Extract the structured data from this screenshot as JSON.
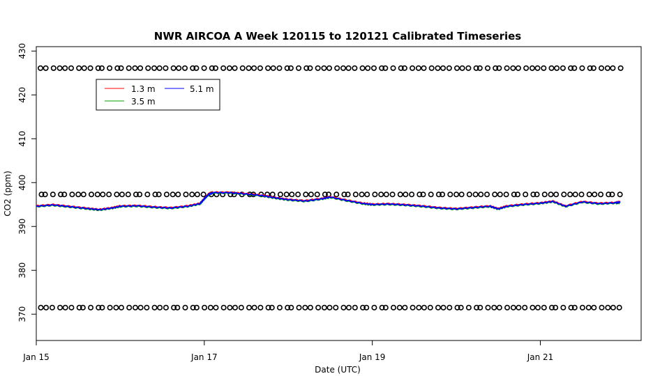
{
  "chart_data": {
    "type": "line",
    "title": "NWR AIRCOA A  Week 120115 to 120121  Calibrated Timeseries",
    "xlabel": "Date (UTC)",
    "ylabel": "CO2 (ppm)",
    "xlim": [
      15.0,
      22.2
    ],
    "ylim": [
      364,
      431
    ],
    "x_ticks": [
      15,
      17,
      19,
      21
    ],
    "x_tick_labels": [
      "Jan 15",
      "Jan 17",
      "Jan 19",
      "Jan 21"
    ],
    "y_ticks": [
      370,
      380,
      390,
      400,
      410,
      420,
      430
    ],
    "y_tick_labels": [
      "370",
      "380",
      "390",
      "400",
      "410",
      "420",
      "430"
    ],
    "grid": false,
    "legend": {
      "placement": "top-left",
      "entries": [
        {
          "label": "1.3 m",
          "color": "#ff0000"
        },
        {
          "label": "3.5 m",
          "color": "#00a000"
        },
        {
          "label": "5.1 m",
          "color": "#0000ff"
        }
      ]
    },
    "series": [
      {
        "name": "1.3 m",
        "color": "#ff0000",
        "x": [
          15.0,
          15.2,
          15.4,
          15.6,
          15.75,
          15.9,
          16.0,
          16.2,
          16.4,
          16.6,
          16.8,
          16.95,
          17.0,
          17.05,
          17.1,
          17.3,
          17.5,
          17.7,
          17.85,
          18.0,
          18.2,
          18.4,
          18.5,
          18.7,
          18.9,
          19.0,
          19.2,
          19.4,
          19.6,
          19.8,
          20.0,
          20.2,
          20.4,
          20.5,
          20.6,
          20.8,
          21.0,
          21.15,
          21.3,
          21.5,
          21.7,
          21.9,
          21.95
        ],
        "y": [
          394.7,
          395.0,
          394.6,
          394.2,
          393.9,
          394.3,
          394.7,
          394.8,
          394.5,
          394.3,
          394.7,
          395.3,
          396.4,
          397.4,
          397.8,
          397.8,
          397.5,
          397.1,
          396.6,
          396.2,
          395.9,
          396.4,
          396.8,
          396.0,
          395.3,
          395.1,
          395.2,
          395.0,
          394.7,
          394.3,
          394.1,
          394.4,
          394.7,
          394.1,
          394.7,
          395.1,
          395.4,
          395.8,
          394.7,
          395.7,
          395.3,
          395.5,
          395.6
        ]
      },
      {
        "name": "3.5 m",
        "color": "#00a000",
        "x": [
          15.0,
          15.2,
          15.4,
          15.6,
          15.75,
          15.9,
          16.0,
          16.2,
          16.4,
          16.6,
          16.8,
          16.95,
          17.0,
          17.05,
          17.1,
          17.3,
          17.5,
          17.7,
          17.85,
          18.0,
          18.2,
          18.4,
          18.5,
          18.7,
          18.9,
          19.0,
          19.2,
          19.4,
          19.6,
          19.8,
          20.0,
          20.2,
          20.4,
          20.5,
          20.6,
          20.8,
          21.0,
          21.15,
          21.3,
          21.5,
          21.7,
          21.9,
          21.95
        ],
        "y": [
          394.5,
          394.8,
          394.4,
          394.0,
          393.7,
          394.1,
          394.5,
          394.6,
          394.3,
          394.1,
          394.5,
          395.1,
          396.2,
          397.2,
          397.6,
          397.6,
          397.3,
          396.9,
          396.4,
          396.0,
          395.7,
          396.2,
          396.6,
          395.8,
          395.1,
          394.9,
          395.0,
          394.8,
          394.5,
          394.1,
          393.9,
          394.2,
          394.5,
          393.9,
          394.5,
          394.9,
          395.2,
          395.6,
          394.5,
          395.5,
          395.1,
          395.3,
          395.4
        ]
      },
      {
        "name": "5.1 m",
        "color": "#0000ff",
        "x": [
          15.0,
          15.2,
          15.4,
          15.6,
          15.75,
          15.9,
          16.0,
          16.2,
          16.4,
          16.6,
          16.8,
          16.95,
          17.0,
          17.05,
          17.1,
          17.3,
          17.5,
          17.7,
          17.85,
          18.0,
          18.2,
          18.4,
          18.5,
          18.7,
          18.9,
          19.0,
          19.2,
          19.4,
          19.6,
          19.8,
          20.0,
          20.2,
          20.4,
          20.5,
          20.6,
          20.8,
          21.0,
          21.15,
          21.3,
          21.5,
          21.7,
          21.9,
          21.95
        ],
        "y": [
          394.6,
          394.9,
          394.5,
          394.1,
          393.8,
          394.2,
          394.6,
          394.7,
          394.4,
          394.2,
          394.6,
          395.2,
          396.3,
          397.3,
          397.7,
          397.7,
          397.4,
          397.0,
          396.5,
          396.1,
          395.8,
          396.3,
          396.7,
          395.9,
          395.2,
          395.0,
          395.1,
          394.9,
          394.6,
          394.2,
          394.0,
          394.3,
          394.6,
          394.0,
          394.6,
          395.0,
          395.3,
          395.7,
          394.6,
          395.6,
          395.2,
          395.4,
          395.5
        ]
      }
    ],
    "reference_points": {
      "marker": "open-circle",
      "color": "#000000",
      "x_start": 15.05,
      "x_end": 21.95,
      "levels_ppm": [
        426.1,
        397.3,
        371.5
      ]
    }
  }
}
